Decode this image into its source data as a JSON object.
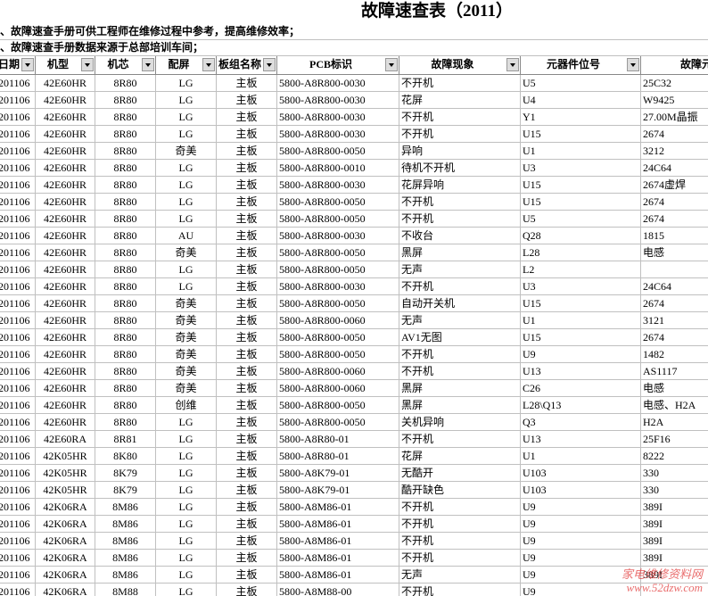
{
  "title": "故障速查表（2011）",
  "notes": [
    "、故障速查手册可供工程师在维修过程中参考，提高维修效率；",
    "、故障速查手册数据来源于总部培训车间；"
  ],
  "table": {
    "header": [
      "日期",
      "机型",
      "机芯",
      "配屏",
      "板组名称",
      "PCB标识",
      "故障现象",
      "元器件位号",
      "故障元"
    ],
    "rows": [
      [
        "201106",
        "42E60HR",
        "8R80",
        "LG",
        "主板",
        "5800-A8R800-0030",
        "不开机",
        "U5",
        "25C32"
      ],
      [
        "201106",
        "42E60HR",
        "8R80",
        "LG",
        "主板",
        "5800-A8R800-0030",
        "花屏",
        "U4",
        "W9425"
      ],
      [
        "201106",
        "42E60HR",
        "8R80",
        "LG",
        "主板",
        "5800-A8R800-0030",
        "不开机",
        "Y1",
        "27.00M晶振"
      ],
      [
        "201106",
        "42E60HR",
        "8R80",
        "LG",
        "主板",
        "5800-A8R800-0030",
        "不开机",
        "U15",
        "2674"
      ],
      [
        "201106",
        "42E60HR",
        "8R80",
        "奇美",
        "主板",
        "5800-A8R800-0050",
        "异响",
        "U1",
        "3212"
      ],
      [
        "201106",
        "42E60HR",
        "8R80",
        "LG",
        "主板",
        "5800-A8R800-0010",
        "待机不开机",
        "U3",
        "24C64"
      ],
      [
        "201106",
        "42E60HR",
        "8R80",
        "LG",
        "主板",
        "5800-A8R800-0030",
        "花屏异响",
        "U15",
        "2674虚焊"
      ],
      [
        "201106",
        "42E60HR",
        "8R80",
        "LG",
        "主板",
        "5800-A8R800-0050",
        "不开机",
        "U15",
        "2674"
      ],
      [
        "201106",
        "42E60HR",
        "8R80",
        "LG",
        "主板",
        "5800-A8R800-0050",
        "不开机",
        "U5",
        "2674"
      ],
      [
        "201106",
        "42E60HR",
        "8R80",
        "AU",
        "主板",
        "5800-A8R800-0030",
        "不收台",
        "Q28",
        "1815"
      ],
      [
        "201106",
        "42E60HR",
        "8R80",
        "奇美",
        "主板",
        "5800-A8R800-0050",
        "黑屏",
        "L28",
        "电感"
      ],
      [
        "201106",
        "42E60HR",
        "8R80",
        "LG",
        "主板",
        "5800-A8R800-0050",
        "无声",
        "L2",
        null
      ],
      [
        "201106",
        "42E60HR",
        "8R80",
        "LG",
        "主板",
        "5800-A8R800-0030",
        "不开机",
        "U3",
        "24C64"
      ],
      [
        "201106",
        "42E60HR",
        "8R80",
        "奇美",
        "主板",
        "5800-A8R800-0050",
        "自动开关机",
        "U15",
        "2674"
      ],
      [
        "201106",
        "42E60HR",
        "8R80",
        "奇美",
        "主板",
        "5800-A8R800-0060",
        "无声",
        "U1",
        "3121"
      ],
      [
        "201106",
        "42E60HR",
        "8R80",
        "奇美",
        "主板",
        "5800-A8R800-0050",
        "AV1无图",
        "U15",
        "2674"
      ],
      [
        "201106",
        "42E60HR",
        "8R80",
        "奇美",
        "主板",
        "5800-A8R800-0050",
        "不开机",
        "U9",
        "1482"
      ],
      [
        "201106",
        "42E60HR",
        "8R80",
        "奇美",
        "主板",
        "5800-A8R800-0060",
        "不开机",
        "U13",
        "AS1117"
      ],
      [
        "201106",
        "42E60HR",
        "8R80",
        "奇美",
        "主板",
        "5800-A8R800-0060",
        "黑屏",
        "C26",
        "电感"
      ],
      [
        "201106",
        "42E60HR",
        "8R80",
        "创维",
        "主板",
        "5800-A8R800-0050",
        "黑屏",
        "L28\\Q13",
        "电感、H2A"
      ],
      [
        "201106",
        "42E60HR",
        "8R80",
        "LG",
        "主板",
        "5800-A8R800-0050",
        "关机异响",
        "Q3",
        "H2A"
      ],
      [
        "201106",
        "42E60RA",
        "8R81",
        "LG",
        "主板",
        "5800-A8R80-01",
        "不开机",
        "U13",
        "25F16"
      ],
      [
        "201106",
        "42K05HR",
        "8K80",
        "LG",
        "主板",
        "5800-A8R80-01",
        "花屏",
        "U1",
        "8222"
      ],
      [
        "201106",
        "42K05HR",
        "8K79",
        "LG",
        "主板",
        "5800-A8K79-01",
        "无酷开",
        "U103",
        "330"
      ],
      [
        "201106",
        "42K05HR",
        "8K79",
        "LG",
        "主板",
        "5800-A8K79-01",
        "酷开缺色",
        "U103",
        "330"
      ],
      [
        "201106",
        "42K06RA",
        "8M86",
        "LG",
        "主板",
        "5800-A8M86-01",
        "不开机",
        "U9",
        "389I"
      ],
      [
        "201106",
        "42K06RA",
        "8M86",
        "LG",
        "主板",
        "5800-A8M86-01",
        "不开机",
        "U9",
        "389I"
      ],
      [
        "201106",
        "42K06RA",
        "8M86",
        "LG",
        "主板",
        "5800-A8M86-01",
        "不开机",
        "U9",
        "389I"
      ],
      [
        "201106",
        "42K06RA",
        "8M86",
        "LG",
        "主板",
        "5800-A8M86-01",
        "不开机",
        "U9",
        "389I"
      ],
      [
        "201106",
        "42K06RA",
        "8M86",
        "LG",
        "主板",
        "5800-A8M86-01",
        "无声",
        "U9",
        "389I"
      ],
      [
        "201106",
        "42K06RA",
        "8M88",
        "LG",
        "主板",
        "5800-A8M88-00",
        "不开机",
        "U9",
        null
      ]
    ]
  },
  "watermark": [
    "家电维修资料网",
    "www.52dzw.com"
  ]
}
